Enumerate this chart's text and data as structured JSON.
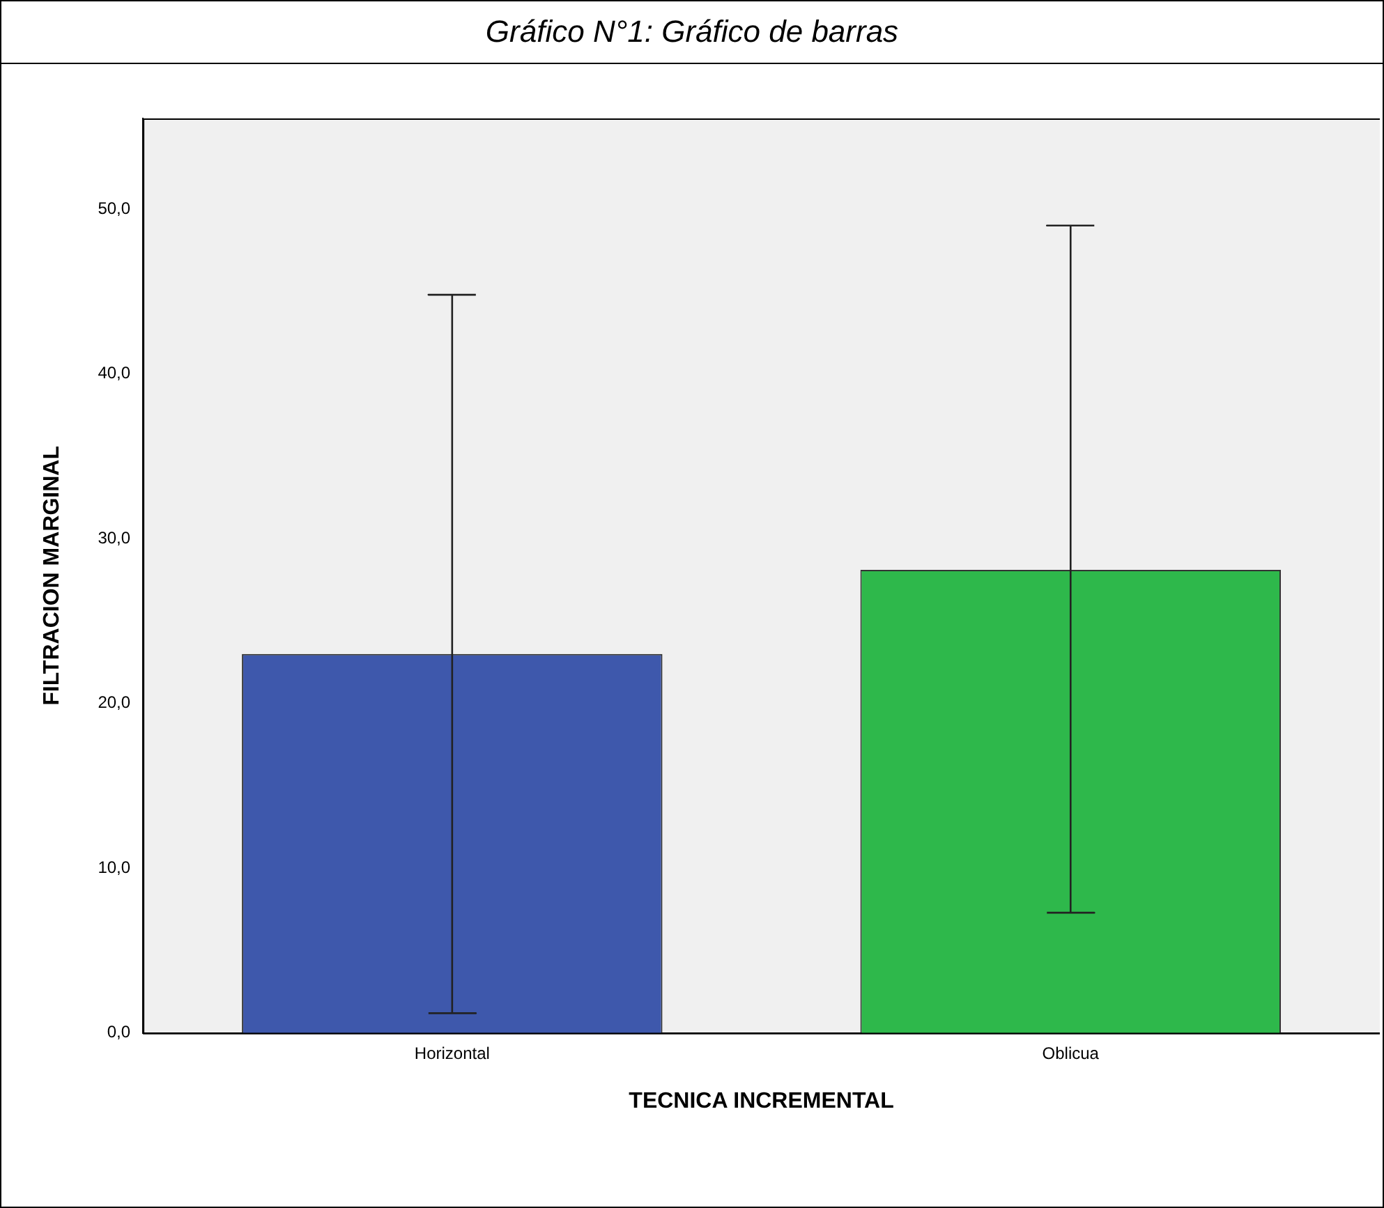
{
  "chart_data": {
    "type": "bar",
    "title": "Gráfico N°1: Gráfico de barras",
    "xlabel": "TECNICA INCREMENTAL",
    "ylabel": "FILTRACION MARGINAL",
    "categories": [
      "Horizontal",
      "Oblicua"
    ],
    "values": [
      23.0,
      28.1
    ],
    "colors": [
      "#3e58ac",
      "#2eb84b"
    ],
    "errors": [
      [
        1.2,
        44.8
      ],
      [
        7.3,
        49.0
      ]
    ],
    "ylim": [
      0,
      55.5
    ],
    "yticks": [
      {
        "value": 0,
        "label": "0,0"
      },
      {
        "value": 10,
        "label": "10,0"
      },
      {
        "value": 20,
        "label": "20,0"
      },
      {
        "value": 30,
        "label": "30,0"
      },
      {
        "value": 40,
        "label": "40,0"
      },
      {
        "value": 50,
        "label": "50,0"
      }
    ],
    "grid": false,
    "legend": false
  }
}
